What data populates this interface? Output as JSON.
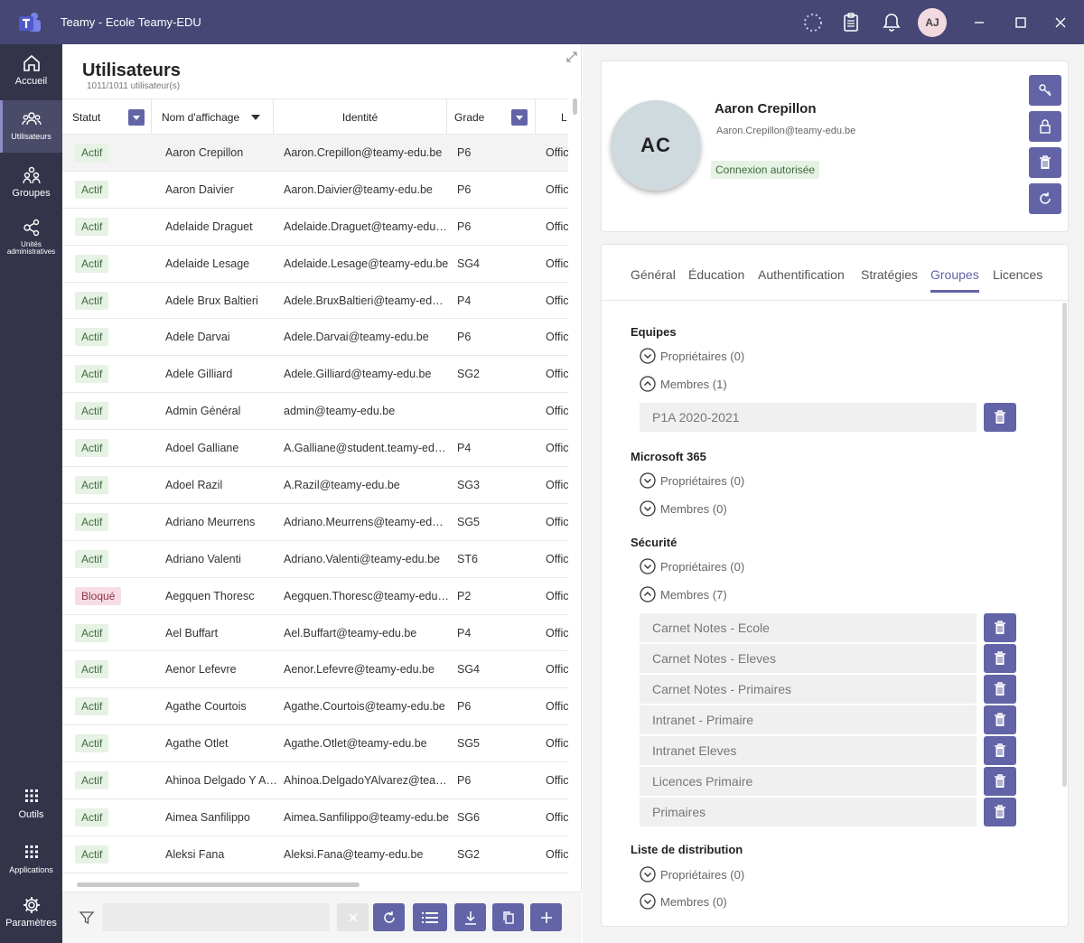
{
  "window": {
    "title": "Teamy - Ecole Teamy-EDU",
    "avatar_initials": "AJ"
  },
  "rail": {
    "top_items": [
      {
        "label": "Accueil",
        "icon": "home-icon"
      },
      {
        "label": "Utilisateurs",
        "icon": "users-icon",
        "active": true
      },
      {
        "label": "Groupes",
        "icon": "groups-icon"
      },
      {
        "label": "Unités administratives",
        "icon": "org-units-icon"
      }
    ],
    "bottom_items": [
      {
        "label": "Outils",
        "icon": "tools-icon"
      },
      {
        "label": "Applications",
        "icon": "apps-icon"
      },
      {
        "label": "Paramètres",
        "icon": "settings-icon"
      }
    ]
  },
  "list": {
    "title": "Utilisateurs",
    "count": "1011/1011 utilisateur(s)",
    "columns": {
      "status": "Statut",
      "name": "Nom d'affichage",
      "identity": "Identité",
      "grade": "Grade",
      "extra": "L"
    },
    "rows": [
      {
        "status": "Actif",
        "name": "Aaron Crepillon",
        "identity": "Aaron.Crepillon@teamy-edu.be",
        "grade": "P6",
        "office": "Offic"
      },
      {
        "status": "Actif",
        "name": "Aaron Daivier",
        "identity": "Aaron.Daivier@teamy-edu.be",
        "grade": "P6",
        "office": "Offic"
      },
      {
        "status": "Actif",
        "name": "Adelaide Draguet",
        "identity": "Adelaide.Draguet@teamy-edu.be",
        "grade": "P6",
        "office": "Offic"
      },
      {
        "status": "Actif",
        "name": "Adelaide Lesage",
        "identity": "Adelaide.Lesage@teamy-edu.be",
        "grade": "SG4",
        "office": "Offic"
      },
      {
        "status": "Actif",
        "name": "Adele Brux Baltieri",
        "identity": "Adele.BruxBaltieri@teamy-edu.be",
        "grade": "P4",
        "office": "Offic"
      },
      {
        "status": "Actif",
        "name": "Adele Darvai",
        "identity": "Adele.Darvai@teamy-edu.be",
        "grade": "P6",
        "office": "Offic"
      },
      {
        "status": "Actif",
        "name": "Adele Gilliard",
        "identity": "Adele.Gilliard@teamy-edu.be",
        "grade": "SG2",
        "office": "Offic"
      },
      {
        "status": "Actif",
        "name": "Admin Général",
        "identity": "admin@teamy-edu.be",
        "grade": "",
        "office": "Offic"
      },
      {
        "status": "Actif",
        "name": "Adoel Galliane",
        "identity": "A.Galliane@student.teamy-edu.be",
        "grade": "P4",
        "office": "Offic"
      },
      {
        "status": "Actif",
        "name": "Adoel Razil",
        "identity": "A.Razil@teamy-edu.be",
        "grade": "SG3",
        "office": "Offic"
      },
      {
        "status": "Actif",
        "name": "Adriano Meurrens",
        "identity": "Adriano.Meurrens@teamy-edu.be",
        "grade": "SG5",
        "office": "Offic"
      },
      {
        "status": "Actif",
        "name": "Adriano Valenti",
        "identity": "Adriano.Valenti@teamy-edu.be",
        "grade": "ST6",
        "office": "Offic"
      },
      {
        "status": "Bloqué",
        "name": "Aegquen Thoresc",
        "identity": "Aegquen.Thoresc@teamy-edu.be",
        "grade": "P2",
        "office": "Offic"
      },
      {
        "status": "Actif",
        "name": "Ael Buffart",
        "identity": "Ael.Buffart@teamy-edu.be",
        "grade": "P4",
        "office": "Offic"
      },
      {
        "status": "Actif",
        "name": "Aenor Lefevre",
        "identity": "Aenor.Lefevre@teamy-edu.be",
        "grade": "SG4",
        "office": "Offic"
      },
      {
        "status": "Actif",
        "name": "Agathe Courtois",
        "identity": "Agathe.Courtois@teamy-edu.be",
        "grade": "P6",
        "office": "Offic"
      },
      {
        "status": "Actif",
        "name": "Agathe Otlet",
        "identity": "Agathe.Otlet@teamy-edu.be",
        "grade": "SG5",
        "office": "Offic"
      },
      {
        "status": "Actif",
        "name": "Ahinoa Delgado Y Al...",
        "identity": "Ahinoa.DelgadoYAlvarez@team...",
        "grade": "P6",
        "office": "Offic"
      },
      {
        "status": "Actif",
        "name": "Aimea Sanfilippo",
        "identity": "Aimea.Sanfilippo@teamy-edu.be",
        "grade": "SG6",
        "office": "Offic"
      },
      {
        "status": "Actif",
        "name": "Aleksi Fana",
        "identity": "Aleksi.Fana@teamy-edu.be",
        "grade": "SG2",
        "office": "Offic"
      }
    ],
    "filter_value": ""
  },
  "detail": {
    "initials": "AC",
    "name": "Aaron Crepillon",
    "email": "Aaron.Crepillon@teamy-edu.be",
    "badge": "Connexion autorisée",
    "tabs": [
      "Général",
      "Éducation",
      "Authentification",
      "Stratégies",
      "Groupes",
      "Licences"
    ],
    "active_tab": "Groupes",
    "sections": {
      "equipes": {
        "title": "Equipes",
        "owners": "Propriétaires (0)",
        "members": "Membres (1)",
        "groups": [
          "P1A 2020-2021"
        ]
      },
      "m365": {
        "title": "Microsoft 365",
        "owners": "Propriétaires (0)",
        "members": "Membres (0)"
      },
      "securite": {
        "title": "Sécurité",
        "owners": "Propriétaires (0)",
        "members": "Membres (7)",
        "groups": [
          "Carnet Notes - Ecole",
          "Carnet Notes - Eleves",
          "Carnet Notes - Primaires",
          "Intranet - Primaire",
          "Intranet Eleves",
          "Licences Primaire",
          "Primaires"
        ]
      },
      "distribution": {
        "title": "Liste de distribution",
        "owners": "Propriétaires (0)",
        "members": "Membres (0)"
      }
    }
  },
  "colors": {
    "accent": "#6264a7",
    "titlebar": "#464775",
    "rail": "#33344a",
    "active_badge": "#e6f2e4",
    "blocked_badge": "#f6dde4"
  }
}
